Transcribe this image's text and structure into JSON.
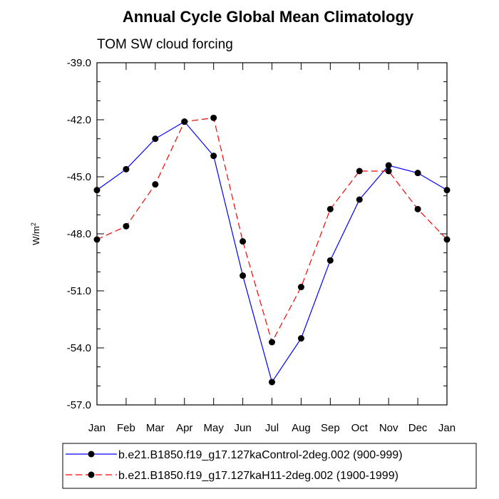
{
  "chart_data": {
    "type": "line",
    "title": "Annual Cycle Global Mean Climatology",
    "subtitle": "TOM SW cloud forcing",
    "ylabel": "W/m",
    "ylabel_sup": "2",
    "xlabel": "",
    "ylim": [
      -57.0,
      -39.0
    ],
    "yticks": [
      "-39.0",
      "-42.0",
      "-45.0",
      "-48.0",
      "-51.0",
      "-54.0",
      "-57.0"
    ],
    "ytick_values": [
      -39,
      -42,
      -45,
      -48,
      -51,
      -54,
      -57
    ],
    "categories": [
      "Jan",
      "Feb",
      "Mar",
      "Apr",
      "May",
      "Jun",
      "Jul",
      "Aug",
      "Sep",
      "Oct",
      "Nov",
      "Dec",
      "Jan"
    ],
    "series": [
      {
        "name": "b.e21.B1850.f19_g17.127kaControl-2deg.002 (900-999)",
        "color": "#0000ff",
        "dash": "solid",
        "values": [
          -45.7,
          -44.6,
          -43.0,
          -42.1,
          -43.9,
          -50.2,
          -55.8,
          -53.5,
          -49.4,
          -46.2,
          -44.4,
          -44.8,
          -45.7
        ]
      },
      {
        "name": "b.e21.B1850.f19_g17.127kaH11-2deg.002 (1900-1999)",
        "color": "#ff0000",
        "dash": "dashed",
        "values": [
          -48.3,
          -47.6,
          -45.4,
          -42.1,
          -41.9,
          -48.4,
          -53.7,
          -50.8,
          -46.7,
          -44.7,
          -44.7,
          -46.7,
          -48.3
        ]
      }
    ],
    "legend_position": "bottom"
  }
}
